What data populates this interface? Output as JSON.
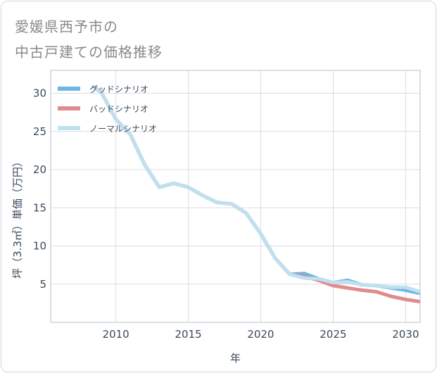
{
  "title_line1": "愛媛県西予市の",
  "title_line2": "中古戸建ての価格推移",
  "chart_data": {
    "type": "line",
    "xlabel": "年",
    "ylabel": "坪（3.3㎡）単価（万円）",
    "xlim": [
      2005.5,
      2031
    ],
    "ylim": [
      0,
      33
    ],
    "xticks": [
      2010,
      2015,
      2020,
      2025,
      2030
    ],
    "yticks": [
      5,
      10,
      15,
      20,
      25,
      30
    ],
    "grid": true,
    "legend_position": "top-left",
    "series": [
      {
        "name": "グッドシナリオ",
        "color": "#6fb6e6",
        "x": [
          2008.5,
          2009,
          2010,
          2011,
          2012,
          2013,
          2014,
          2015,
          2016,
          2017,
          2018,
          2019,
          2020,
          2021,
          2022,
          2023,
          2024,
          2025,
          2026,
          2027,
          2028,
          2029,
          2030,
          2031
        ],
        "values": [
          30.8,
          30.1,
          26.6,
          24.6,
          20.6,
          17.7,
          18.2,
          17.7,
          16.6,
          15.7,
          15.5,
          14.3,
          11.6,
          8.4,
          6.3,
          6.4,
          5.7,
          5.2,
          5.5,
          4.9,
          4.8,
          4.5,
          4.2,
          3.8
        ]
      },
      {
        "name": "バッドシナリオ",
        "color": "#e08b8e",
        "x": [
          2008.5,
          2009,
          2010,
          2011,
          2012,
          2013,
          2014,
          2015,
          2016,
          2017,
          2018,
          2019,
          2020,
          2021,
          2022,
          2023,
          2024,
          2025,
          2026,
          2027,
          2028,
          2029,
          2030,
          2031
        ],
        "values": [
          30.8,
          30.1,
          26.6,
          24.6,
          20.6,
          17.7,
          18.2,
          17.7,
          16.6,
          15.7,
          15.5,
          14.3,
          11.6,
          8.4,
          6.3,
          6.0,
          5.5,
          4.8,
          4.5,
          4.2,
          4.0,
          3.4,
          3.0,
          2.7
        ]
      },
      {
        "name": "ノーマルシナリオ",
        "color": "#bfe0ef",
        "x": [
          2008.5,
          2009,
          2010,
          2011,
          2012,
          2013,
          2014,
          2015,
          2016,
          2017,
          2018,
          2019,
          2020,
          2021,
          2022,
          2023,
          2024,
          2025,
          2026,
          2027,
          2028,
          2029,
          2030,
          2031
        ],
        "values": [
          30.8,
          30.1,
          26.6,
          24.6,
          20.6,
          17.7,
          18.2,
          17.7,
          16.6,
          15.7,
          15.5,
          14.3,
          11.6,
          8.4,
          6.3,
          5.8,
          5.7,
          5.2,
          5.3,
          4.9,
          4.8,
          4.6,
          4.6,
          4.0
        ]
      }
    ]
  }
}
